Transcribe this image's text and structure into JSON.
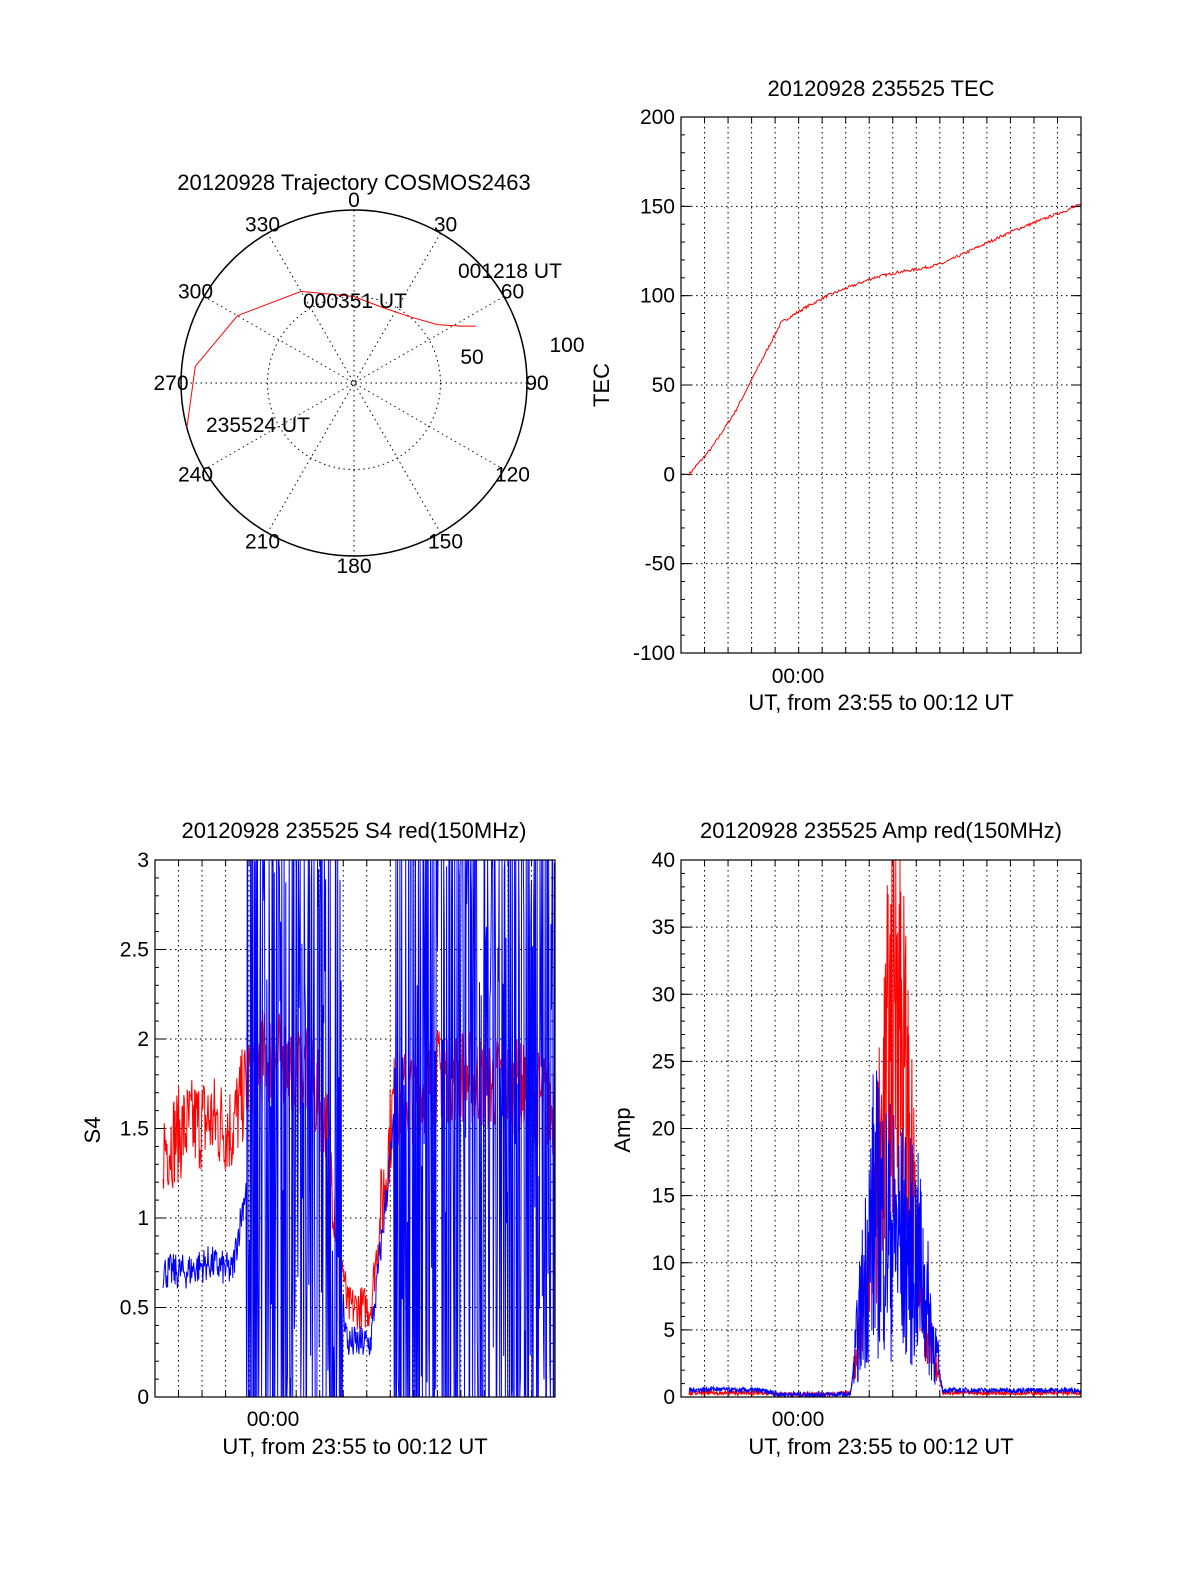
{
  "chart_data": [
    {
      "type": "polar",
      "title": "20120928 Trajectory COSMOS2463",
      "angle_labels": [
        "0",
        "30",
        "60",
        "90",
        "120",
        "150",
        "180",
        "210",
        "240",
        "270",
        "300",
        "330"
      ],
      "radius_labels": [
        "50",
        "100"
      ],
      "track_az": [
        255,
        276,
        300,
        330,
        0,
        20,
        40,
        55,
        62,
        65
      ],
      "track_el": [
        0,
        7,
        20,
        35,
        45,
        48,
        45,
        37,
        27,
        20
      ],
      "track_color": "#ff0000",
      "annotations": [
        "001218 UT",
        "000351 UT",
        "235524 UT"
      ]
    },
    {
      "type": "line",
      "title": "20120928 235525 TEC",
      "xlabel": "UT, from 23:55 to 00:12 UT",
      "ylabel": "TEC",
      "x_tick_label": "00:00",
      "ylim": [
        -100,
        200
      ],
      "y_ticks": [
        "-100",
        "-50",
        "0",
        "50",
        "100",
        "150",
        "200"
      ],
      "x": [
        "23:55",
        "23:56",
        "23:57",
        "23:58",
        "23:59",
        "00:00",
        "00:01",
        "00:02",
        "00:03",
        "00:04",
        "00:05",
        "00:06",
        "00:07",
        "00:08",
        "00:09",
        "00:10",
        "00:11",
        "00:12"
      ],
      "series": [
        {
          "color": "#ff0000",
          "values": [
            0,
            15,
            35,
            60,
            85,
            93,
            100,
            105,
            110,
            113,
            115,
            118,
            124,
            130,
            136,
            141,
            146,
            151
          ]
        }
      ]
    },
    {
      "type": "line",
      "title": "20120928 235525 S4 red(150MHz)",
      "xlabel": "UT, from 23:55 to 00:12 UT",
      "ylabel": "S4",
      "x_tick_label": "00:00",
      "ylim": [
        0,
        3
      ],
      "y_ticks": [
        "0",
        "0.5",
        "1",
        "1.5",
        "2",
        "2.5",
        "3"
      ],
      "x": [
        "23:55",
        "23:56",
        "23:57",
        "23:58",
        "23:59",
        "00:00",
        "00:01",
        "00:02",
        "00:03",
        "00:04",
        "00:05",
        "00:06",
        "00:07",
        "00:08",
        "00:09",
        "00:10",
        "00:11",
        "00:12"
      ],
      "series": [
        {
          "color": "#ff0000",
          "values": [
            1.4,
            1.5,
            1.55,
            1.5,
            1.9,
            1.9,
            1.85,
            1.6,
            0.5,
            0.5,
            1.65,
            1.7,
            1.8,
            1.8,
            1.75,
            1.75,
            1.7,
            1.6
          ]
        },
        {
          "color": "#0000ff",
          "values": [
            0.7,
            0.7,
            0.75,
            0.7,
            1.5,
            1.5,
            1.5,
            1.5,
            0.3,
            0.3,
            1.5,
            1.7,
            1.8,
            2.0,
            1.9,
            2.0,
            1.85,
            1.8
          ]
        }
      ]
    },
    {
      "type": "line",
      "title": "20120928 235525 Amp red(150MHz)",
      "xlabel": "UT, from 23:55 to 00:12 UT",
      "ylabel": "Amp",
      "x_tick_label": "00:00",
      "ylim": [
        0,
        40
      ],
      "y_ticks": [
        "0",
        "5",
        "10",
        "15",
        "20",
        "25",
        "30",
        "35",
        "40"
      ],
      "x": [
        "23:55",
        "23:56",
        "23:57",
        "23:58",
        "23:59",
        "00:00",
        "00:01",
        "00:02",
        "00:03",
        "00:04",
        "00:05",
        "00:06",
        "00:07",
        "00:08",
        "00:09",
        "00:10",
        "00:11",
        "00:12"
      ],
      "series": [
        {
          "color": "#ff0000",
          "values": [
            0.3,
            0.3,
            0.3,
            0.3,
            0.2,
            0.2,
            0.2,
            0.3,
            12,
            33,
            8,
            0.3,
            0.3,
            0.3,
            0.3,
            0.3,
            0.3,
            0.3
          ]
        },
        {
          "color": "#0000ff",
          "values": [
            0.5,
            0.6,
            0.5,
            0.5,
            0.2,
            0.2,
            0.2,
            0.2,
            14,
            12,
            10,
            0.5,
            0.5,
            0.5,
            0.5,
            0.5,
            0.5,
            0.5
          ]
        }
      ]
    }
  ]
}
